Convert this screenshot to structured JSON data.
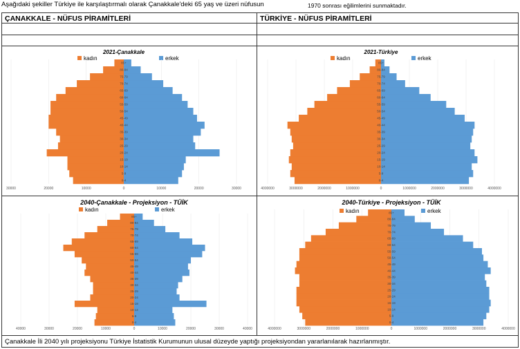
{
  "intro": {
    "line1": "Aşağıdaki şekiller Türkiye ile karşılaştırmalı olarak Çanakkale'deki 65 yaş ve üzeri nüfusun",
    "line2": "1970 sonrası eğilimlerini sunmaktadır."
  },
  "table": {
    "col_left_header": "ÇANAKKALE  - NÜFUS PİRAMİTLERİ",
    "col_right_header": "TÜRKİYE - NÜFUS PİRAMİTLERİ",
    "footer": "Çanakkale İli 2040 yılı projeksiyonu Türkiye İstatistik Kurumunun ulusal düzeyde yaptığı projeksiyondan yararlanılarak hazırlanmıştır."
  },
  "colors": {
    "female": "#ED7D31",
    "male": "#5B9BD5"
  },
  "chart_data": [
    {
      "type": "bar",
      "title": "2021-Çanakkale",
      "legend": [
        "kadın",
        "erkek"
      ],
      "categories": [
        "0-4",
        "5-9",
        "10-14",
        "15-19",
        "20-24",
        "25-29",
        "30-34",
        "35-39",
        "40-44",
        "45-49",
        "50-54",
        "55-59",
        "60-64",
        "65-69",
        "70-74",
        "75-79",
        "80-84",
        "85+"
      ],
      "series": [
        {
          "name": "kadın",
          "values": [
            13500,
            14500,
            15000,
            15000,
            20500,
            17500,
            17000,
            18000,
            20000,
            20000,
            19500,
            19500,
            18000,
            15500,
            12500,
            9000,
            5500,
            2500
          ]
        },
        {
          "name": "erkek",
          "values": [
            14500,
            15500,
            16000,
            16500,
            25500,
            19000,
            18500,
            20500,
            21500,
            19500,
            18500,
            17000,
            15500,
            13000,
            10500,
            7500,
            4500,
            2000
          ]
        }
      ],
      "xticks": [
        "30000",
        "20000",
        "10000",
        "0",
        "10000",
        "20000",
        "30000"
      ],
      "xlim": [
        -30000,
        30000
      ]
    },
    {
      "type": "bar",
      "title": "2021-Türkiye",
      "legend": [
        "kadın",
        "erkek"
      ],
      "categories": [
        "0-4",
        "5-9",
        "10-14",
        "15-19",
        "20-24",
        "25-29",
        "30-34",
        "35-39",
        "40-44",
        "45-49",
        "50-54",
        "55-59",
        "60-64",
        "65-69",
        "70-74",
        "75-79",
        "80-84",
        "85+"
      ],
      "series": [
        {
          "name": "kadın",
          "values": [
            3050000,
            3200000,
            3150000,
            3250000,
            3200000,
            3100000,
            3150000,
            3200000,
            3300000,
            2900000,
            2600000,
            2350000,
            1900000,
            1550000,
            1100000,
            750000,
            400000,
            200000
          ]
        },
        {
          "name": "erkek",
          "values": [
            3100000,
            3250000,
            3200000,
            3400000,
            3300000,
            3150000,
            3200000,
            3250000,
            3300000,
            2950000,
            2600000,
            2300000,
            1750000,
            1350000,
            850000,
            550000,
            300000,
            120000
          ]
        }
      ],
      "xticks": [
        "4000000",
        "3000000",
        "2000000",
        "1000000",
        "0",
        "1000000",
        "2000000",
        "3000000",
        "4000000"
      ],
      "xlim": [
        -4000000,
        4000000
      ]
    },
    {
      "type": "bar",
      "title": "2040-Çanakkale - Projeksiyon - TÜİK",
      "legend": [
        "kadın",
        "erkek"
      ],
      "categories": [
        "0-4",
        "5-9",
        "10-14",
        "15-19",
        "20-24",
        "25-29",
        "30-34",
        "35-39",
        "40-44",
        "45-49",
        "50-54",
        "55-59",
        "60-64",
        "65-69",
        "70-74",
        "75-79",
        "80-84",
        "85+"
      ],
      "series": [
        {
          "name": "kadın",
          "values": [
            14000,
            13500,
            13000,
            21000,
            15500,
            14500,
            14500,
            15500,
            17500,
            17000,
            18500,
            21000,
            25000,
            22000,
            17500,
            13000,
            9500,
            5000
          ]
        },
        {
          "name": "erkek",
          "values": [
            14500,
            14000,
            13500,
            25500,
            16000,
            15000,
            15500,
            17000,
            19500,
            19000,
            20000,
            24000,
            25000,
            20500,
            16000,
            11000,
            7000,
            3000
          ]
        }
      ],
      "xticks": [
        "40000",
        "30000",
        "20000",
        "10000",
        "0",
        "10000",
        "20000",
        "30000",
        "40000"
      ],
      "xlim": [
        -40000,
        40000
      ]
    },
    {
      "type": "bar",
      "title": "2040-Türkiye - Projeksiyon - TÜİK",
      "legend": [
        "kadın",
        "erkek"
      ],
      "categories": [
        "0-4",
        "5-9",
        "10-14",
        "15-19",
        "20-24",
        "25-29",
        "30-34",
        "35-39",
        "40-44",
        "45-49",
        "50-54",
        "55-59",
        "60-64",
        "65-69",
        "70-74",
        "75-79",
        "80-84",
        "85+"
      ],
      "series": [
        {
          "name": "kadın",
          "values": [
            2950000,
            3050000,
            3150000,
            3250000,
            3250000,
            3250000,
            3150000,
            3150000,
            3300000,
            3250000,
            3150000,
            3150000,
            2950000,
            2750000,
            2250000,
            1800000,
            1200000,
            800000
          ]
        },
        {
          "name": "erkek",
          "values": [
            3150000,
            3250000,
            3350000,
            3400000,
            3350000,
            3350000,
            3250000,
            3200000,
            3400000,
            3300000,
            3150000,
            3100000,
            2800000,
            2450000,
            1800000,
            1350000,
            800000,
            450000
          ]
        }
      ],
      "xticks": [
        "4000000",
        "3000000",
        "2000000",
        "1000000",
        "0",
        "1000000",
        "2000000",
        "3000000",
        "4000000"
      ],
      "xlim": [
        -4000000,
        4000000
      ]
    }
  ]
}
